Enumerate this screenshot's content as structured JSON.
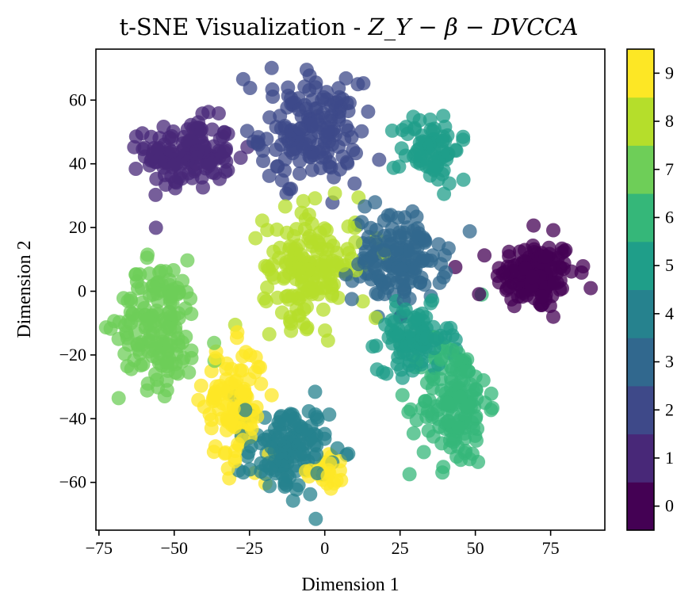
{
  "chart_data": {
    "type": "scatter",
    "title_prefix": "t-SNE Visualization - ",
    "title_math": "Z_Y − β − DVCCA",
    "xlabel": "Dimension 1",
    "ylabel": "Dimension 2",
    "xlim": [
      -76,
      93
    ],
    "ylim": [
      -75,
      76
    ],
    "x_ticks": [
      -75,
      -50,
      -25,
      0,
      25,
      50,
      75
    ],
    "x_tick_labels": [
      "−75",
      "−50",
      "−25",
      "0",
      "25",
      "50",
      "75"
    ],
    "y_ticks": [
      -60,
      -40,
      -20,
      0,
      20,
      40,
      60
    ],
    "y_tick_labels": [
      "−60",
      "−40",
      "−20",
      "0",
      "20",
      "40",
      "60"
    ],
    "colorbar": {
      "min": -0.5,
      "max": 9.5,
      "ticks": [
        0,
        1,
        2,
        3,
        4,
        5,
        6,
        7,
        8,
        9
      ],
      "tick_labels": [
        "0",
        "1",
        "2",
        "3",
        "4",
        "5",
        "6",
        "7",
        "8",
        "9"
      ],
      "colors": [
        "#440154",
        "#482878",
        "#3e4989",
        "#31688e",
        "#26828e",
        "#1f9e89",
        "#35b779",
        "#6ece58",
        "#b5de2b",
        "#fde725"
      ]
    },
    "clusters": [
      {
        "label": 0,
        "center": [
          70,
          5
        ],
        "spread": [
          12,
          10
        ],
        "count": 140
      },
      {
        "label": 1,
        "center": [
          -45,
          43
        ],
        "spread": [
          13,
          10
        ],
        "count": 140
      },
      {
        "label": 2,
        "center": [
          -5,
          50
        ],
        "spread": [
          15,
          14
        ],
        "count": 160
      },
      {
        "label": 3,
        "center": [
          25,
          10
        ],
        "spread": [
          14,
          12
        ],
        "count": 140
      },
      {
        "label": 4,
        "center": [
          -12,
          -50
        ],
        "spread": [
          12,
          13
        ],
        "count": 130
      },
      {
        "label": 5,
        "center": [
          30,
          -15
        ],
        "spread": [
          11,
          9
        ],
        "count": 90
      },
      {
        "label": 5,
        "center": [
          35,
          45
        ],
        "spread": [
          9,
          10
        ],
        "count": 70
      },
      {
        "label": 6,
        "center": [
          43,
          -35
        ],
        "spread": [
          10,
          18
        ],
        "count": 150
      },
      {
        "label": 7,
        "center": [
          -55,
          -10
        ],
        "spread": [
          12,
          18
        ],
        "count": 160
      },
      {
        "label": 8,
        "center": [
          -5,
          8
        ],
        "spread": [
          14,
          16
        ],
        "count": 160
      },
      {
        "label": 9,
        "center": [
          -30,
          -35
        ],
        "spread": [
          9,
          16
        ],
        "count": 110
      },
      {
        "label": 9,
        "center": [
          0,
          -57
        ],
        "spread": [
          4,
          4
        ],
        "count": 20
      }
    ],
    "point_alpha": 0.75
  }
}
